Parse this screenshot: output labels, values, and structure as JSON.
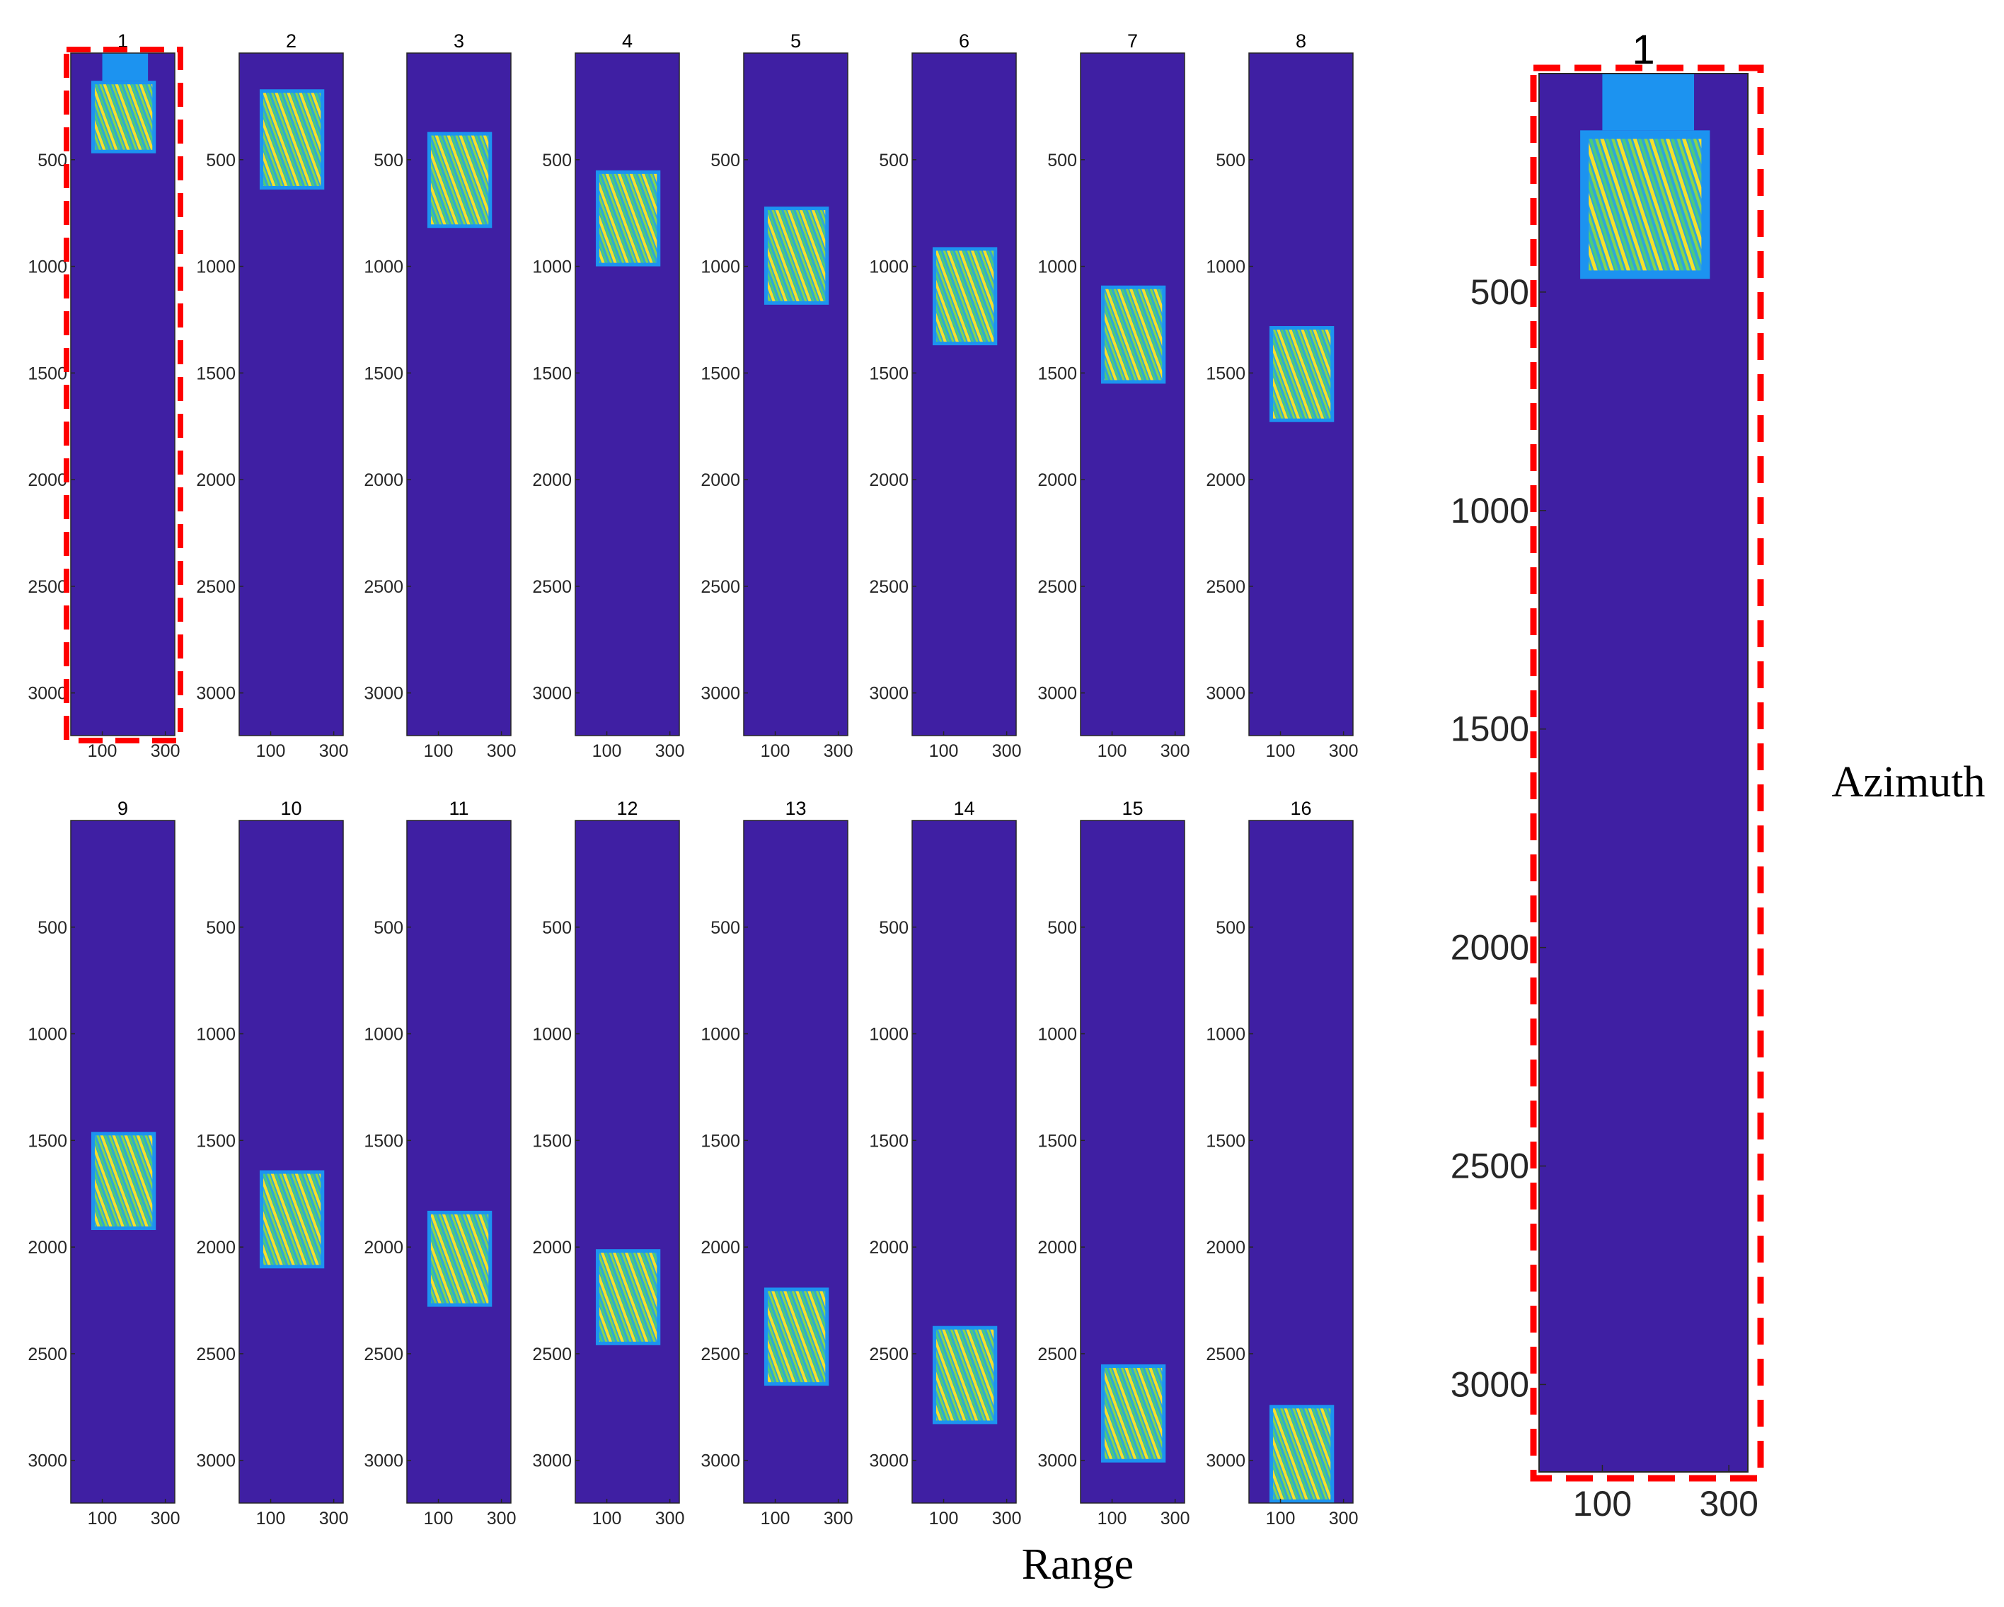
{
  "chart_data": {
    "type": "heatmap",
    "y_ticks": [
      500,
      1000,
      1500,
      2000,
      2500,
      3000
    ],
    "x_ticks": [
      100,
      300
    ],
    "xlim": [
      0,
      330
    ],
    "ylim": [
      3200,
      0
    ],
    "x_axis_label": "Range",
    "y_axis_label": "Azimuth",
    "colors": {
      "background": "#3F1FA3",
      "patch_edge": "#1C93F0",
      "stripe_green": "#4DCB7A",
      "stripe_yellow": "#F7E12A",
      "highlight_box": "#FF0000"
    },
    "small_panels": [
      {
        "title": "1",
        "y_start": 130,
        "y_end": 470
      },
      {
        "title": "2",
        "y_start": 170,
        "y_end": 640
      },
      {
        "title": "3",
        "y_start": 370,
        "y_end": 820
      },
      {
        "title": "4",
        "y_start": 550,
        "y_end": 1000
      },
      {
        "title": "5",
        "y_start": 720,
        "y_end": 1180
      },
      {
        "title": "6",
        "y_start": 910,
        "y_end": 1370
      },
      {
        "title": "7",
        "y_start": 1090,
        "y_end": 1550
      },
      {
        "title": "8",
        "y_start": 1280,
        "y_end": 1730
      },
      {
        "title": "9",
        "y_start": 1460,
        "y_end": 1920
      },
      {
        "title": "10",
        "y_start": 1640,
        "y_end": 2100
      },
      {
        "title": "11",
        "y_start": 1830,
        "y_end": 2280
      },
      {
        "title": "12",
        "y_start": 2010,
        "y_end": 2460
      },
      {
        "title": "13",
        "y_start": 2190,
        "y_end": 2650
      },
      {
        "title": "14",
        "y_start": 2370,
        "y_end": 2830
      },
      {
        "title": "15",
        "y_start": 2550,
        "y_end": 3010
      },
      {
        "title": "16",
        "y_start": 2740,
        "y_end": 3200
      }
    ],
    "zoom_panel": {
      "title": "1",
      "y_start": 130,
      "y_end": 470,
      "top_bar": [
        0,
        130
      ],
      "highlighted": true
    }
  }
}
